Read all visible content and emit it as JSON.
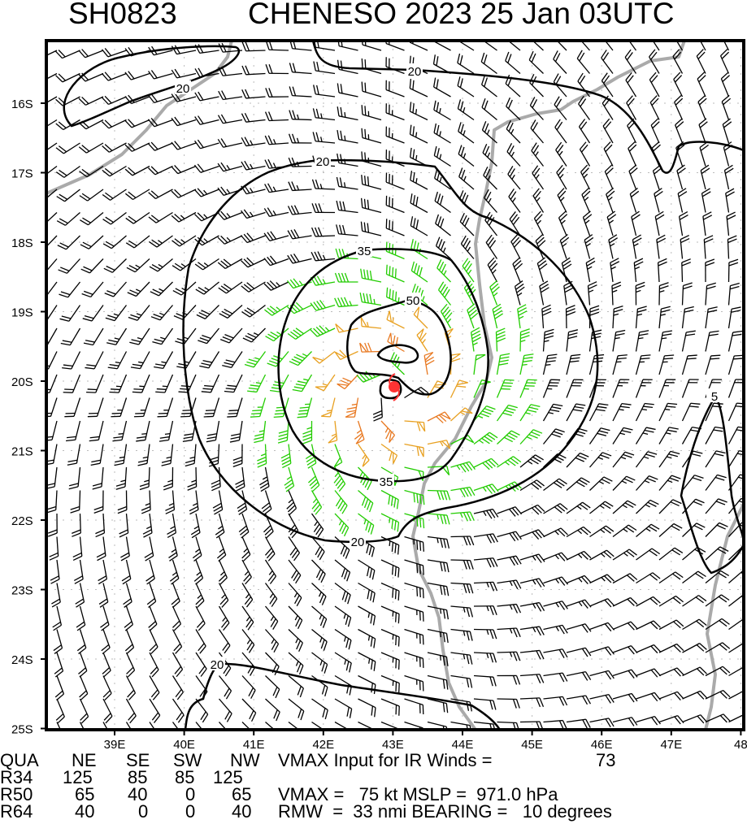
{
  "title": {
    "storm_id": "SH0823",
    "storm_name_time": "CHENESO 2023 25 Jan 03UTC"
  },
  "map": {
    "lat_labels": [
      "16S",
      "17S",
      "18S",
      "19S",
      "20S",
      "21S",
      "22S",
      "23S",
      "24S",
      "25S"
    ],
    "lon_labels": [
      "39E",
      "40E",
      "41E",
      "42E",
      "43E",
      "44E",
      "45E",
      "46E",
      "47E",
      "48"
    ],
    "contour_labels": [
      "20",
      "20",
      "20",
      "20",
      "20",
      "35",
      "35",
      "50",
      "5"
    ],
    "storm_center": {
      "lon": 43.05,
      "lat": -20.15
    },
    "colors": {
      "lt34": "#000000",
      "34to49": "#22cc00",
      "50to63": "#e8a020",
      "ge64": "#e87820",
      "coast": "#aaaaaa",
      "center": "#ff3333"
    }
  },
  "table": {
    "headers": [
      "QUA",
      "NE",
      "SE",
      "SW",
      "NW"
    ],
    "rows": [
      {
        "label": "R34",
        "values": [
          "125",
          "85",
          "85",
          "125"
        ]
      },
      {
        "label": "R50",
        "values": [
          "65",
          "40",
          "0",
          "65"
        ]
      },
      {
        "label": "R64",
        "values": [
          "40",
          "0",
          "0",
          "40"
        ]
      }
    ]
  },
  "summary": {
    "vmax_ir_label": "VMAX Input for IR Winds =",
    "vmax_ir_value": "73",
    "vmax_line": "VMAX =   75 kt MSLP =  971.0 hPa",
    "rmw_line": "RMW  =  33 nmi BEARING =   10 degrees"
  }
}
